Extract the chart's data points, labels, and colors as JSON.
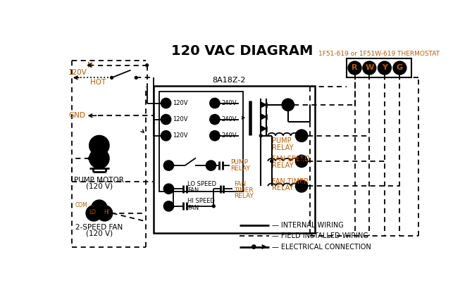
{
  "title": "120 VAC DIAGRAM",
  "title_fontsize": 14,
  "bg_color": "#ffffff",
  "text_color": "#000000",
  "orange_color": "#b85c00",
  "thermostat_label": "1F51-619 or 1F51W-619 THERMOSTAT",
  "controller_label": "8A18Z-2",
  "figsize": [
    6.7,
    4.19
  ],
  "dpi": 100
}
